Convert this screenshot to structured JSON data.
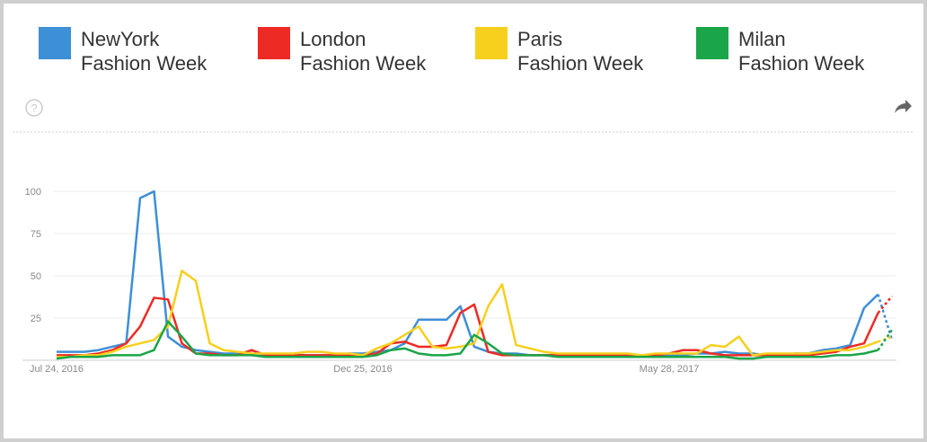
{
  "chart_data": {
    "type": "line",
    "categories": [
      "Jul 24, 2016",
      null,
      null,
      null,
      null,
      null,
      null,
      null,
      null,
      null,
      null,
      null,
      null,
      null,
      null,
      null,
      null,
      null,
      null,
      null,
      null,
      null,
      "Dec 25, 2016",
      null,
      null,
      null,
      null,
      null,
      null,
      null,
      null,
      null,
      null,
      null,
      null,
      null,
      null,
      null,
      null,
      null,
      null,
      null,
      null,
      null,
      "May 28, 2017",
      null,
      null,
      null,
      null,
      null,
      null,
      null,
      null,
      null,
      null,
      null,
      null,
      null,
      null,
      null,
      null
    ],
    "series": [
      {
        "name": "NewYork Fashion Week",
        "color": "#3d8fd6",
        "values": [
          5,
          5,
          5,
          6,
          8,
          10,
          96,
          100,
          14,
          8,
          6,
          5,
          4,
          4,
          3,
          3,
          3,
          3,
          3,
          3,
          3,
          4,
          4,
          5,
          6,
          10,
          24,
          24,
          24,
          32,
          8,
          5,
          4,
          4,
          3,
          3,
          3,
          3,
          3,
          3,
          3,
          3,
          2,
          3,
          3,
          3,
          4,
          4,
          5,
          4,
          4,
          3,
          3,
          4,
          4,
          6,
          7,
          9,
          31,
          39,
          12
        ]
      },
      {
        "name": "London Fashion Week",
        "color": "#ee2a24",
        "values": [
          3,
          3,
          3,
          4,
          6,
          10,
          20,
          37,
          36,
          10,
          4,
          4,
          3,
          3,
          6,
          3,
          3,
          3,
          3,
          3,
          3,
          3,
          3,
          4,
          10,
          11,
          8,
          8,
          9,
          28,
          33,
          5,
          3,
          3,
          3,
          3,
          3,
          3,
          3,
          3,
          3,
          3,
          3,
          3,
          4,
          6,
          6,
          4,
          3,
          3,
          3,
          3,
          3,
          3,
          3,
          4,
          5,
          8,
          10,
          28,
          38
        ]
      },
      {
        "name": "Paris Fashion Week",
        "color": "#f7cf1d",
        "values": [
          2,
          2,
          3,
          3,
          5,
          8,
          10,
          12,
          20,
          53,
          47,
          10,
          6,
          5,
          4,
          4,
          4,
          4,
          5,
          5,
          4,
          4,
          3,
          7,
          10,
          15,
          20,
          8,
          7,
          8,
          10,
          32,
          45,
          9,
          7,
          5,
          4,
          4,
          4,
          4,
          4,
          4,
          3,
          4,
          4,
          4,
          4,
          9,
          8,
          14,
          3,
          4,
          4,
          4,
          4,
          5,
          6,
          6,
          8,
          11,
          14
        ]
      },
      {
        "name": "Milan Fashion Week",
        "color": "#1aa548",
        "values": [
          1,
          2,
          2,
          2,
          3,
          3,
          3,
          6,
          23,
          14,
          4,
          3,
          3,
          3,
          3,
          2,
          2,
          2,
          2,
          2,
          2,
          2,
          2,
          3,
          6,
          7,
          4,
          3,
          3,
          4,
          15,
          10,
          4,
          3,
          3,
          3,
          2,
          2,
          2,
          2,
          2,
          2,
          2,
          2,
          2,
          2,
          2,
          2,
          2,
          1,
          1,
          2,
          2,
          2,
          2,
          2,
          3,
          3,
          4,
          6,
          18
        ]
      }
    ],
    "ylim": [
      0,
      100
    ],
    "yticks": [
      25,
      50,
      75,
      100
    ],
    "grid": true
  }
}
